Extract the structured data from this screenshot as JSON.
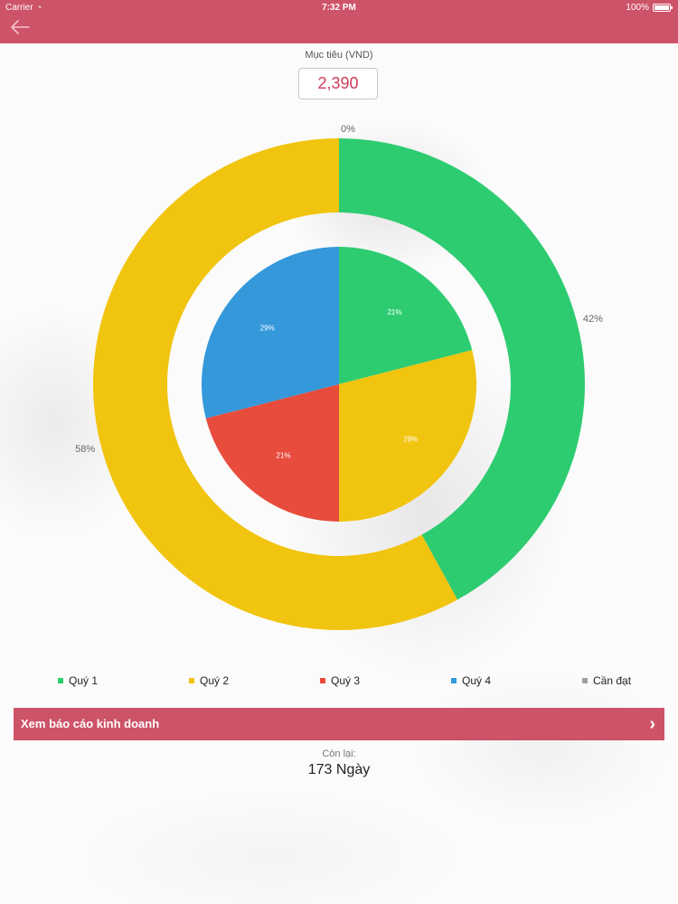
{
  "status_bar": {
    "carrier": "Carrier",
    "time": "7:32 PM",
    "battery": "100%"
  },
  "header": {
    "back_icon": "arrow-left-icon"
  },
  "target": {
    "label": "Mục tiêu (VND)",
    "value": "2,390"
  },
  "colors": {
    "accent": "#cd5368",
    "green": "#2ecc71",
    "yellow": "#f1c40f",
    "red": "#e74c3c",
    "blue": "#3498db",
    "gray": "#a0a0a0"
  },
  "chart_data": {
    "type": "pie",
    "outer_ring": {
      "slices": [
        {
          "label": "0%",
          "value": 0,
          "color": "#ffffff"
        },
        {
          "label": "42%",
          "value": 42,
          "color": "#2ecc71"
        },
        {
          "label": "58%",
          "value": 58,
          "color": "#f1c40f"
        }
      ]
    },
    "inner_pie": {
      "slices": [
        {
          "label": "21%",
          "value": 21,
          "color": "#2ecc71"
        },
        {
          "label": "29%",
          "value": 29,
          "color": "#f1c40f"
        },
        {
          "label": "21%",
          "value": 21,
          "color": "#e74c3c"
        },
        {
          "label": "29%",
          "value": 29,
          "color": "#3498db"
        }
      ]
    },
    "legend": [
      {
        "label": "Quý 1",
        "color": "#2ecc71"
      },
      {
        "label": "Quý 2",
        "color": "#f1c40f"
      },
      {
        "label": "Quý 3",
        "color": "#e74c3c"
      },
      {
        "label": "Quý 4",
        "color": "#3498db"
      },
      {
        "label": "Cần đạt",
        "color": "#a0a0a0"
      }
    ]
  },
  "report_button": {
    "label": "Xem báo cáo kinh doanh",
    "icon": "chevron-right-icon"
  },
  "remaining": {
    "label": "Còn lại:",
    "value": "173 Ngày"
  }
}
